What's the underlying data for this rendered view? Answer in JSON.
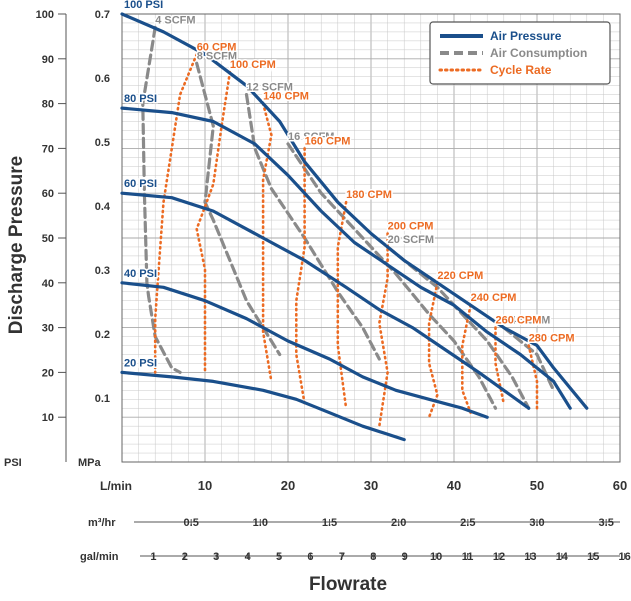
{
  "colors": {
    "air_pressure": "#1a4f8b",
    "air_consumption": "#8a8a8a",
    "cycle_rate": "#ec6b23",
    "grid": "#c8c8c8",
    "text": "#333333"
  },
  "chart_data": {
    "type": "line",
    "title": "",
    "ylabel": "Discharge Pressure",
    "xlabel": "Flowrate",
    "ylim_psi": [
      0,
      100
    ],
    "xlim_lmin": [
      0,
      60
    ],
    "grid": true,
    "legend_position": "top-right",
    "psi_axis": {
      "unit_label": "PSI",
      "ticks": [
        10,
        20,
        30,
        40,
        50,
        60,
        70,
        80,
        90,
        100
      ]
    },
    "mpa_axis": {
      "unit_label": "MPa",
      "ticks": [
        "0.1",
        "0.2",
        "0.3",
        "0.4",
        "0.5",
        "0.6",
        "0.7"
      ]
    },
    "lmin_axis": {
      "unit_label": "L/min",
      "ticks": [
        "10",
        "20",
        "30",
        "40",
        "50",
        "60"
      ]
    },
    "m3hr_axis": {
      "unit_label": "m³/hr",
      "ticks": [
        "0.5",
        "1.0",
        "1.5",
        "2.0",
        "2.5",
        "3.0",
        "3.5"
      ]
    },
    "galmin_axis": {
      "unit_label": "gal/min",
      "ticks": [
        "1",
        "2",
        "3",
        "4",
        "5",
        "6",
        "7",
        "8",
        "9",
        "10",
        "11",
        "12",
        "13",
        "14",
        "15",
        "16"
      ]
    },
    "legend": [
      {
        "label": "Air Pressure",
        "style": "solid"
      },
      {
        "label": "Air Consumption",
        "style": "dashed"
      },
      {
        "label": "Cycle Rate",
        "style": "dotted"
      }
    ],
    "series": [
      {
        "group": "air_pressure",
        "label": "100 PSI",
        "points": [
          [
            0,
            100
          ],
          [
            5,
            96
          ],
          [
            10,
            91
          ],
          [
            15,
            84
          ],
          [
            19,
            76
          ],
          [
            22,
            67
          ],
          [
            26,
            58
          ],
          [
            30,
            51
          ],
          [
            34,
            45
          ],
          [
            38,
            40
          ],
          [
            42,
            35
          ],
          [
            46,
            30
          ],
          [
            50,
            26
          ],
          [
            52,
            21
          ],
          [
            56,
            12
          ]
        ]
      },
      {
        "group": "air_pressure",
        "label": "80 PSI",
        "points": [
          [
            0,
            79
          ],
          [
            6,
            78
          ],
          [
            11,
            76
          ],
          [
            16,
            71
          ],
          [
            20,
            64
          ],
          [
            24,
            56
          ],
          [
            28,
            49
          ],
          [
            32,
            44
          ],
          [
            36,
            39
          ],
          [
            40,
            35
          ],
          [
            44,
            29
          ],
          [
            48,
            24
          ],
          [
            52,
            18
          ],
          [
            54,
            12
          ]
        ]
      },
      {
        "group": "air_pressure",
        "label": "60 PSI",
        "points": [
          [
            0,
            60
          ],
          [
            6,
            59
          ],
          [
            11,
            56
          ],
          [
            17,
            50
          ],
          [
            22,
            45
          ],
          [
            27,
            39
          ],
          [
            31,
            34
          ],
          [
            35,
            30
          ],
          [
            39,
            25
          ],
          [
            43,
            20
          ],
          [
            46,
            16
          ],
          [
            49,
            12
          ]
        ]
      },
      {
        "group": "air_pressure",
        "label": "40 PSI",
        "points": [
          [
            0,
            40
          ],
          [
            5,
            39
          ],
          [
            10,
            36
          ],
          [
            15,
            32
          ],
          [
            20,
            27
          ],
          [
            25,
            23
          ],
          [
            29,
            19
          ],
          [
            33,
            16
          ],
          [
            37,
            14
          ],
          [
            41,
            12
          ],
          [
            44,
            10
          ]
        ]
      },
      {
        "group": "air_pressure",
        "label": "20 PSI",
        "points": [
          [
            0,
            20
          ],
          [
            6,
            19
          ],
          [
            11,
            18
          ],
          [
            17,
            16
          ],
          [
            21,
            14
          ],
          [
            25,
            11
          ],
          [
            29,
            8
          ],
          [
            34,
            5
          ]
        ]
      },
      {
        "group": "air_consumption",
        "label": "4 SCFM",
        "points": [
          [
            4,
            97
          ],
          [
            2.5,
            80
          ],
          [
            2.7,
            60
          ],
          [
            3,
            40
          ],
          [
            3.2,
            37
          ],
          [
            4,
            28
          ],
          [
            6,
            21
          ],
          [
            7,
            20
          ]
        ]
      },
      {
        "group": "air_consumption",
        "label": "8 SCFM",
        "points": [
          [
            9,
            89
          ],
          [
            11,
            75
          ],
          [
            10,
            58
          ],
          [
            11,
            54
          ],
          [
            13,
            45
          ],
          [
            15,
            36
          ],
          [
            17,
            30
          ],
          [
            19,
            24
          ]
        ]
      },
      {
        "group": "air_consumption",
        "label": "12 SCFM",
        "points": [
          [
            15,
            82
          ],
          [
            16,
            70
          ],
          [
            18,
            61
          ],
          [
            22,
            50
          ],
          [
            26,
            38
          ],
          [
            29,
            30
          ],
          [
            31,
            23
          ]
        ]
      },
      {
        "group": "air_consumption",
        "label": "16 SCFM",
        "points": [
          [
            20,
            71
          ],
          [
            24,
            60
          ],
          [
            28,
            52
          ],
          [
            33,
            42
          ],
          [
            37,
            33
          ],
          [
            40,
            27
          ],
          [
            43,
            19
          ],
          [
            45,
            12
          ]
        ]
      },
      {
        "group": "air_consumption",
        "label": "20 SCFM",
        "points": [
          [
            32,
            48
          ],
          [
            38,
            39
          ],
          [
            41,
            33
          ],
          [
            44,
            27
          ],
          [
            47,
            19
          ],
          [
            49,
            12
          ]
        ]
      },
      {
        "group": "air_consumption",
        "label": "24 SCFM",
        "points": [
          [
            46,
            30
          ],
          [
            50,
            24
          ],
          [
            52,
            16
          ]
        ]
      },
      {
        "group": "cycle_rate",
        "label": "60 CPM",
        "points": [
          [
            9,
            91
          ],
          [
            7,
            82
          ],
          [
            6,
            70
          ],
          [
            5,
            58
          ],
          [
            4.5,
            45
          ],
          [
            4,
            32
          ],
          [
            4,
            20
          ]
        ]
      },
      {
        "group": "cycle_rate",
        "label": "100 CPM",
        "points": [
          [
            13,
            87
          ],
          [
            12,
            75
          ],
          [
            11,
            62
          ],
          [
            9,
            52
          ],
          [
            10,
            43
          ],
          [
            10,
            33
          ],
          [
            10,
            20
          ]
        ]
      },
      {
        "group": "cycle_rate",
        "label": "140 CPM",
        "points": [
          [
            17,
            80
          ],
          [
            18,
            73
          ],
          [
            17,
            63
          ],
          [
            17,
            50
          ],
          [
            17,
            40
          ],
          [
            17,
            29
          ],
          [
            18,
            18
          ]
        ]
      },
      {
        "group": "cycle_rate",
        "label": "160 CPM",
        "points": [
          [
            22,
            70
          ],
          [
            22,
            60
          ],
          [
            22,
            48
          ],
          [
            21,
            36
          ],
          [
            21,
            24
          ],
          [
            22,
            13
          ]
        ]
      },
      {
        "group": "cycle_rate",
        "label": "180 CPM",
        "points": [
          [
            27,
            58
          ],
          [
            26,
            48
          ],
          [
            26,
            37
          ],
          [
            26,
            26
          ],
          [
            27,
            12
          ]
        ]
      },
      {
        "group": "cycle_rate",
        "label": "200 CPM",
        "points": [
          [
            32,
            51
          ],
          [
            32,
            41
          ],
          [
            31,
            31
          ],
          [
            32,
            20
          ],
          [
            31,
            8
          ]
        ]
      },
      {
        "group": "cycle_rate",
        "label": "220 CPM",
        "points": [
          [
            38,
            40
          ],
          [
            37,
            31
          ],
          [
            37,
            22
          ],
          [
            38,
            15
          ],
          [
            37,
            10
          ]
        ]
      },
      {
        "group": "cycle_rate",
        "label": "240 CPM",
        "points": [
          [
            42,
            35
          ],
          [
            41,
            26
          ],
          [
            41,
            16
          ],
          [
            42,
            11
          ]
        ]
      },
      {
        "group": "cycle_rate",
        "label": "260 CPM",
        "points": [
          [
            45,
            30
          ],
          [
            45,
            22
          ],
          [
            46,
            13
          ]
        ]
      },
      {
        "group": "cycle_rate",
        "label": "280 CPM",
        "points": [
          [
            49,
            26
          ],
          [
            50,
            18
          ],
          [
            50,
            12
          ]
        ]
      }
    ]
  }
}
